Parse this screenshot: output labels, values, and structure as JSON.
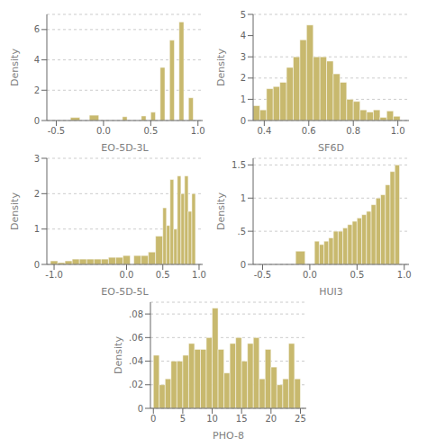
{
  "chart_data": [
    {
      "type": "histogram",
      "xlabel": "EQ-5D-3L",
      "ylabel": "Density",
      "color": "#c8b96e",
      "grid": true,
      "xlim": [
        -0.6,
        1.05
      ],
      "ylim": [
        0,
        7
      ],
      "xticks": [
        -0.5,
        {
          "value": 0,
          "label": "0.0"
        },
        0.5,
        {
          "value": 1,
          "label": "1.0"
        }
      ],
      "yticks": [
        0,
        2,
        4,
        6
      ],
      "bins": [
        -0.55,
        -0.45,
        -0.35,
        -0.25,
        -0.15,
        -0.05,
        0.05,
        0.1,
        0.15,
        0.2,
        0.25,
        0.3,
        0.35,
        0.4,
        0.45,
        0.5,
        0.55,
        0.6,
        0.65,
        0.7,
        0.75,
        0.8,
        0.85,
        0.9,
        0.95,
        1.0
      ],
      "values": [
        0.0,
        0.0,
        0.2,
        0.0,
        0.35,
        0.0,
        0.0,
        0.0,
        0.0,
        0.25,
        0.0,
        0.0,
        0.0,
        0.3,
        0.0,
        0.55,
        0.0,
        3.5,
        0.0,
        5.3,
        0.0,
        6.5,
        0.0,
        1.5,
        0.0
      ]
    },
    {
      "type": "histogram",
      "xlabel": "SF6D",
      "ylabel": "Density",
      "color": "#c8b96e",
      "grid": true,
      "xlim": [
        0.35,
        1.05
      ],
      "ylim": [
        0,
        5
      ],
      "xticks": [
        0.4,
        0.6,
        0.8,
        {
          "value": 1,
          "label": "1.0"
        }
      ],
      "yticks": [
        0,
        1,
        2,
        3,
        4,
        5
      ],
      "bins": [
        0.35,
        0.38,
        0.41,
        0.44,
        0.47,
        0.5,
        0.53,
        0.56,
        0.59,
        0.62,
        0.65,
        0.68,
        0.71,
        0.74,
        0.77,
        0.8,
        0.83,
        0.86,
        0.89,
        0.92,
        0.95,
        0.98,
        1.01
      ],
      "values": [
        0.7,
        0.5,
        1.5,
        1.6,
        1.8,
        2.5,
        3.0,
        3.8,
        4.5,
        3.0,
        3.0,
        2.8,
        2.2,
        1.8,
        1.0,
        0.9,
        0.5,
        0.4,
        0.5,
        0.15,
        0.45,
        0.2
      ]
    },
    {
      "type": "histogram",
      "xlabel": "EQ-5D-5L",
      "ylabel": "Density",
      "color": "#c8b96e",
      "grid": true,
      "xlim": [
        -1.1,
        1.05
      ],
      "ylim": [
        0,
        3
      ],
      "xticks": [
        {
          "value": -1,
          "label": "-1.0"
        },
        {
          "value": 0,
          "label": "0.0"
        },
        0.5,
        {
          "value": 1,
          "label": "1.0"
        }
      ],
      "yticks": [
        0,
        1,
        2,
        3
      ],
      "bins": [
        -1.05,
        -0.95,
        -0.85,
        -0.75,
        -0.65,
        -0.55,
        -0.45,
        -0.35,
        -0.25,
        -0.15,
        -0.05,
        0.05,
        0.1,
        0.2,
        0.3,
        0.4,
        0.5,
        0.55,
        0.6,
        0.65,
        0.7,
        0.75,
        0.8,
        0.85,
        0.9,
        0.95,
        1.0
      ],
      "values": [
        0.1,
        0.05,
        0.1,
        0.15,
        0.15,
        0.15,
        0.15,
        0.15,
        0.2,
        0.2,
        0.25,
        null,
        0.25,
        0.25,
        0.35,
        0.8,
        1.6,
        1.1,
        2.4,
        1.0,
        2.5,
        2.0,
        2.5,
        1.5,
        2.0,
        0.0
      ]
    },
    {
      "type": "histogram",
      "xlabel": "HUI3",
      "ylabel": "Density",
      "color": "#c8b96e",
      "grid": true,
      "xlim": [
        -0.6,
        1.05
      ],
      "ylim": [
        0,
        1.6
      ],
      "xticks": [
        -0.5,
        {
          "value": 0,
          "label": "0.0"
        },
        0.5,
        {
          "value": 1,
          "label": "1.0"
        }
      ],
      "yticks": [
        0,
        {
          "value": 0.5,
          "label": ".5"
        },
        1,
        1.5
      ],
      "bins": [
        -0.55,
        -0.45,
        -0.35,
        -0.25,
        -0.15,
        -0.05,
        0.05,
        0.1,
        0.15,
        0.2,
        0.25,
        0.3,
        0.35,
        0.4,
        0.45,
        0.5,
        0.55,
        0.6,
        0.65,
        0.7,
        0.75,
        0.8,
        0.85,
        0.9,
        0.95,
        1.0
      ],
      "values": [
        0.0,
        0.0,
        0.0,
        0.0,
        0.2,
        0.0,
        0.35,
        0.3,
        0.35,
        0.4,
        0.5,
        0.5,
        0.55,
        0.6,
        0.65,
        0.7,
        0.75,
        0.8,
        0.9,
        1.0,
        1.05,
        1.2,
        1.4,
        1.5,
        0.0
      ]
    },
    {
      "type": "histogram",
      "xlabel": "PHQ-8",
      "ylabel": "Density",
      "color": "#c8b96e",
      "grid": true,
      "xlim": [
        -0.5,
        26
      ],
      "ylim": [
        0,
        0.09
      ],
      "xticks": [
        0,
        5,
        10,
        15,
        20,
        25
      ],
      "yticks": [
        0,
        {
          "value": 0.02,
          "label": ".02"
        },
        {
          "value": 0.04,
          "label": ".04"
        },
        {
          "value": 0.06,
          "label": ".06"
        },
        {
          "value": 0.08,
          "label": ".08"
        }
      ],
      "bins": [
        0,
        1,
        2,
        3,
        4,
        5,
        6,
        7,
        8,
        9,
        10,
        11,
        12,
        13,
        14,
        15,
        16,
        17,
        18,
        19,
        20,
        21,
        22,
        23,
        24,
        25
      ],
      "values": [
        0.045,
        0.02,
        0.025,
        0.04,
        0.04,
        0.045,
        0.055,
        0.05,
        0.05,
        0.06,
        0.085,
        0.05,
        0.03,
        0.055,
        0.06,
        0.04,
        0.055,
        0.06,
        0.025,
        0.05,
        0.035,
        0.02,
        0.025,
        0.055,
        0.025
      ]
    }
  ]
}
